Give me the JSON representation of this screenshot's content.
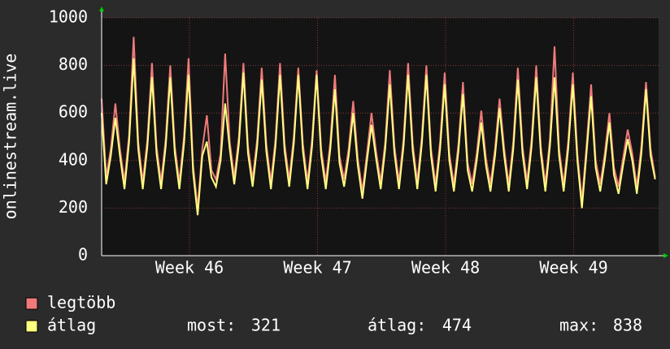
{
  "chart_data": {
    "type": "line",
    "y_label": "onlinestream.live",
    "x": [
      0,
      0.25,
      0.5,
      0.75,
      1,
      1.25,
      1.5,
      1.75,
      2,
      2.25,
      2.5,
      2.75,
      3,
      3.25,
      3.5,
      3.75,
      4,
      4.25,
      4.5,
      4.75,
      5,
      5.25,
      5.5,
      5.75,
      6,
      6.25,
      6.5,
      6.75,
      7,
      7.25,
      7.5,
      7.75,
      8,
      8.25,
      8.5,
      8.75,
      9,
      9.25,
      9.5,
      9.75,
      10,
      10.25,
      10.5,
      10.75,
      11,
      11.25,
      11.5,
      11.75,
      12,
      12.25,
      12.5,
      12.75,
      13,
      13.25,
      13.5,
      13.75,
      14,
      14.25,
      14.5,
      14.75,
      15,
      15.25,
      15.5,
      15.75,
      16,
      16.25,
      16.5,
      16.75,
      17,
      17.25,
      17.5,
      17.75,
      18,
      18.25,
      18.5,
      18.75,
      19,
      19.25,
      19.5,
      19.75,
      20,
      20.25,
      20.5,
      20.75,
      21,
      21.25,
      21.5,
      21.75,
      22,
      22.25,
      22.5,
      22.75,
      23,
      23.25,
      23.5,
      23.75,
      24,
      24.25,
      24.5,
      24.75,
      25,
      25.25,
      25.5,
      25.75,
      26,
      26.25,
      26.5,
      26.75,
      27,
      27.25,
      27.5,
      27.75,
      28,
      28.25,
      28.5,
      28.75,
      29,
      29.25,
      29.5,
      29.75,
      30,
      30.25
    ],
    "series": [
      {
        "name": "legtöbb",
        "color": "#f07a7a",
        "values": [
          660,
          330,
          450,
          640,
          450,
          310,
          510,
          920,
          480,
          310,
          490,
          810,
          460,
          310,
          490,
          800,
          460,
          310,
          500,
          830,
          380,
          200,
          450,
          590,
          360,
          320,
          430,
          850,
          480,
          330,
          500,
          810,
          460,
          320,
          490,
          790,
          470,
          310,
          490,
          810,
          470,
          320,
          500,
          790,
          470,
          310,
          490,
          780,
          450,
          310,
          480,
          760,
          420,
          320,
          450,
          650,
          410,
          270,
          430,
          600,
          440,
          310,
          480,
          780,
          460,
          310,
          490,
          810,
          470,
          310,
          500,
          800,
          450,
          300,
          480,
          770,
          430,
          300,
          470,
          730,
          390,
          300,
          430,
          610,
          410,
          300,
          450,
          660,
          450,
          300,
          480,
          790,
          460,
          310,
          490,
          800,
          460,
          300,
          490,
          880,
          450,
          300,
          480,
          770,
          430,
          230,
          460,
          720,
          400,
          300,
          430,
          600,
          370,
          290,
          410,
          530,
          430,
          290,
          460,
          730,
          450,
          330
        ]
      },
      {
        "name": "átlag",
        "color": "#ffff80",
        "values": [
          600,
          300,
          420,
          580,
          420,
          280,
          480,
          830,
          450,
          280,
          460,
          750,
          430,
          280,
          460,
          750,
          430,
          280,
          470,
          760,
          350,
          170,
          420,
          480,
          330,
          290,
          400,
          640,
          450,
          300,
          470,
          770,
          430,
          290,
          460,
          740,
          440,
          280,
          460,
          760,
          440,
          290,
          470,
          760,
          440,
          280,
          460,
          760,
          420,
          280,
          450,
          700,
          390,
          290,
          420,
          600,
          380,
          240,
          400,
          550,
          410,
          280,
          450,
          720,
          430,
          280,
          460,
          760,
          440,
          280,
          470,
          760,
          420,
          270,
          450,
          720,
          400,
          270,
          440,
          680,
          360,
          270,
          400,
          560,
          380,
          270,
          420,
          620,
          420,
          270,
          450,
          740,
          430,
          280,
          460,
          750,
          430,
          270,
          460,
          750,
          420,
          270,
          450,
          720,
          400,
          200,
          430,
          670,
          370,
          270,
          400,
          560,
          340,
          260,
          380,
          490,
          400,
          260,
          430,
          700,
          420,
          321
        ]
      }
    ],
    "xlim": [
      0,
      30.44
    ],
    "xticks": [
      {
        "value": 4.8,
        "label": "Week 46"
      },
      {
        "value": 11.8,
        "label": "Week 47"
      },
      {
        "value": 18.8,
        "label": "Week 48"
      },
      {
        "value": 25.8,
        "label": "Week 49"
      }
    ],
    "ylim": [
      0,
      1000
    ],
    "yticks": [
      0,
      200,
      400,
      600,
      800,
      1000
    ],
    "grid": true,
    "stats": [
      {
        "label": "most:",
        "value": 321
      },
      {
        "label": "átlag:",
        "value": 474
      },
      {
        "label": "max:",
        "value": 838
      }
    ]
  }
}
